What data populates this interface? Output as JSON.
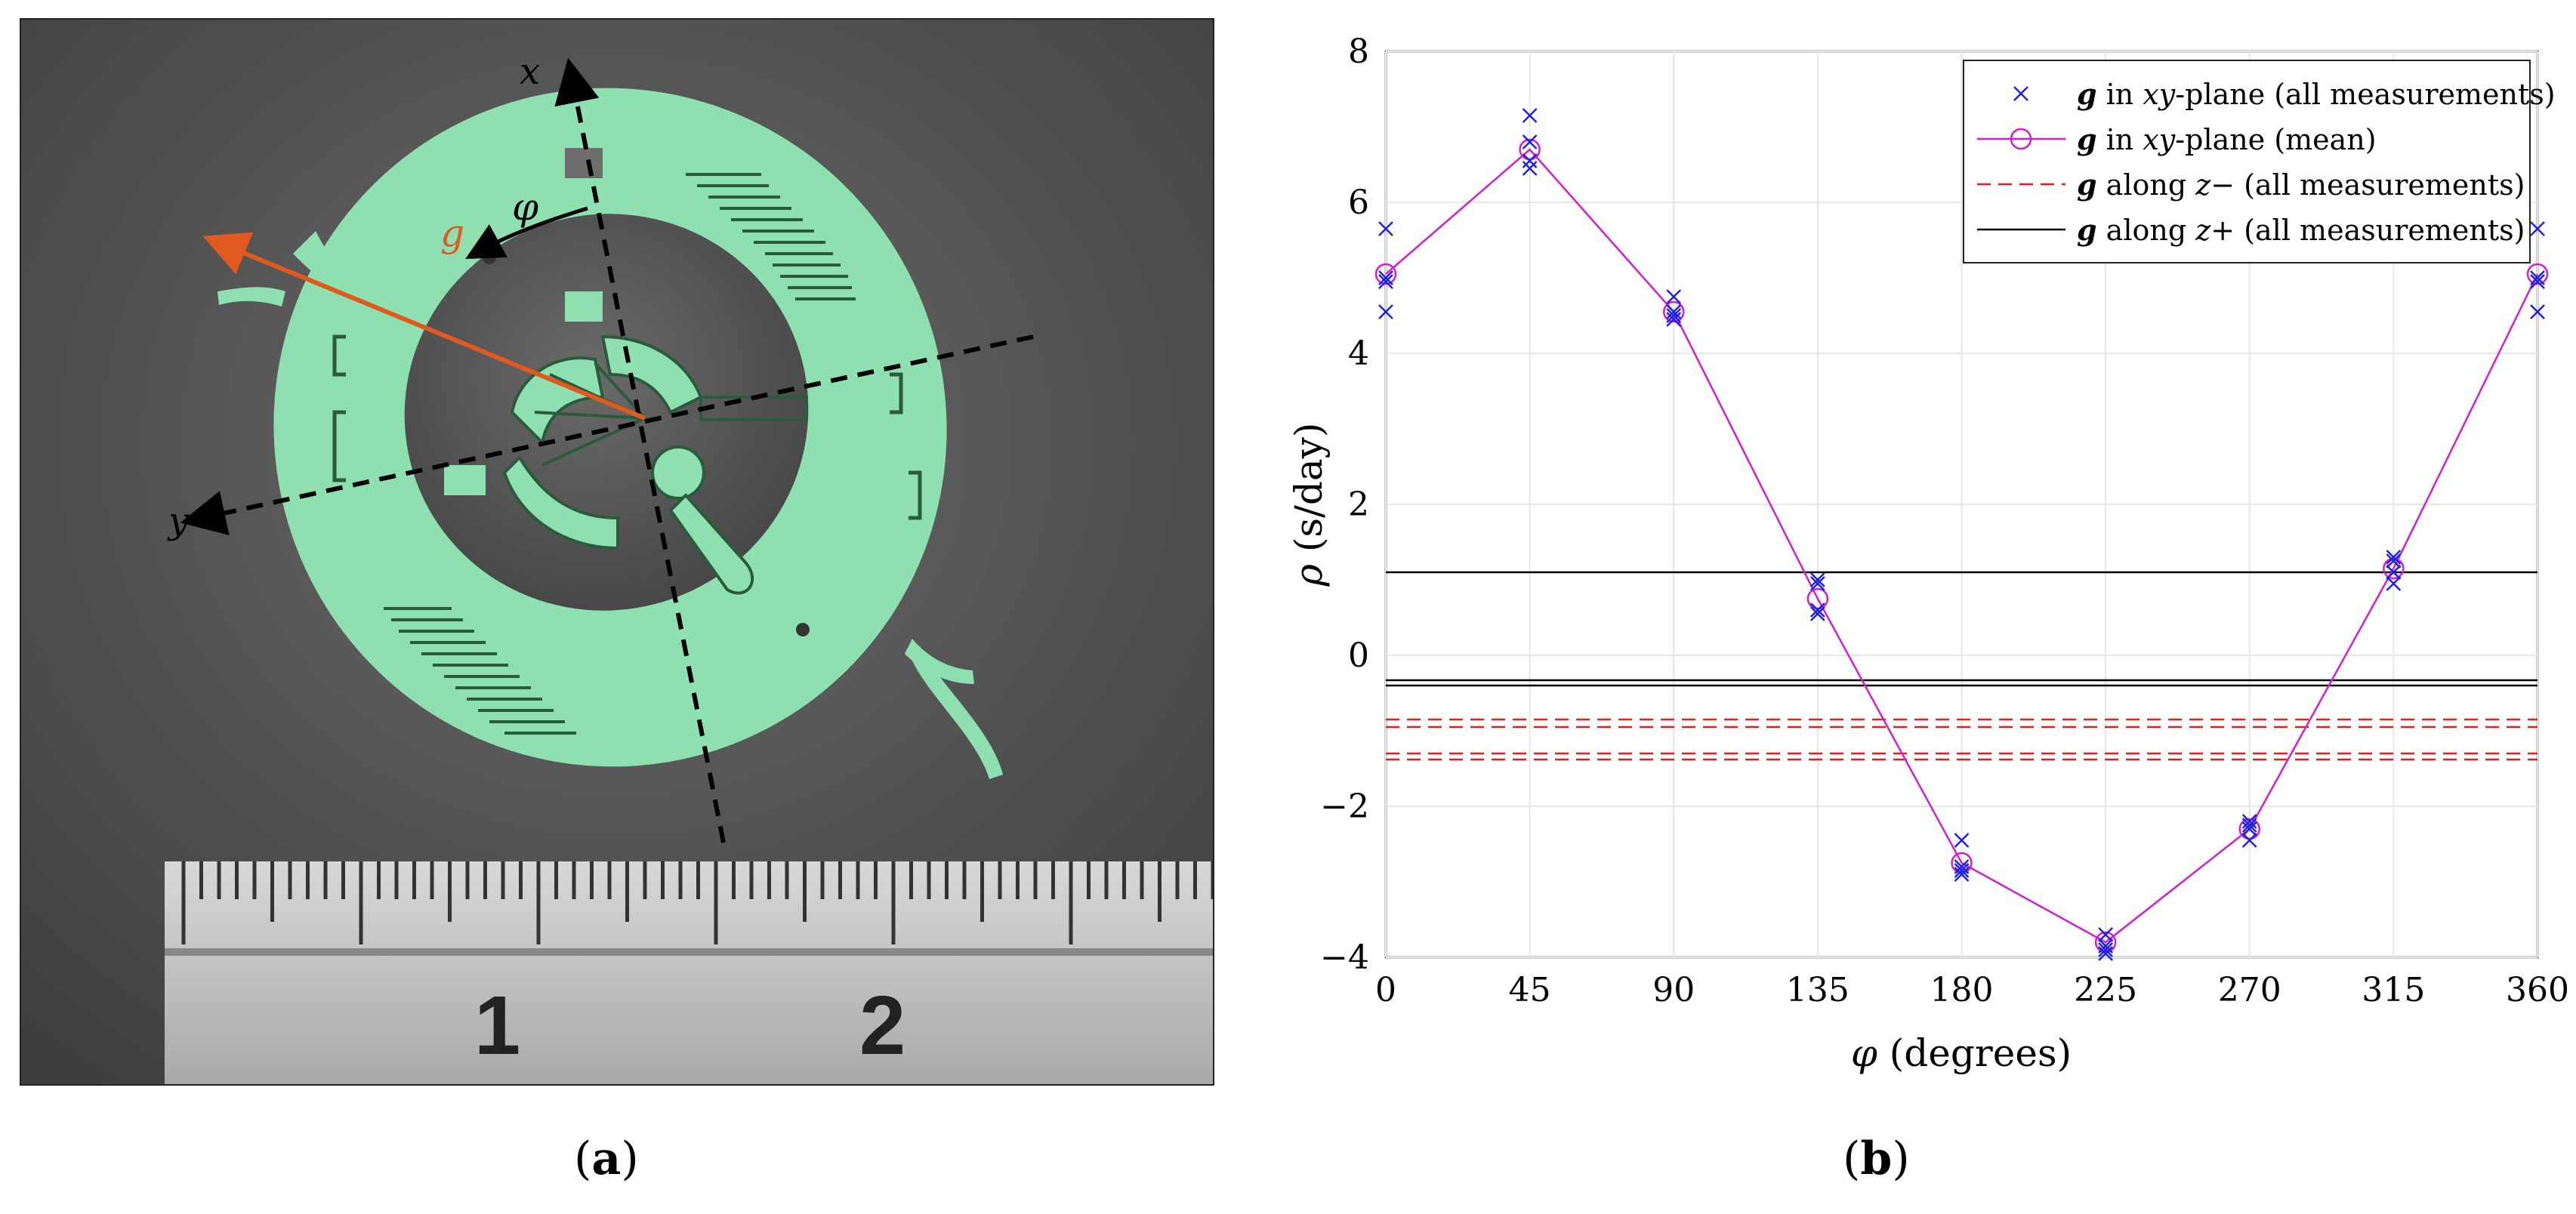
{
  "figure": {
    "panel_a": {
      "label_open": "(",
      "label_letter": "a",
      "label_close": ")",
      "axis_x": "x",
      "axis_y": "y",
      "gravity": "g",
      "angle": "φ",
      "ruler_marks": [
        "1",
        "2"
      ]
    },
    "panel_b": {
      "label_open": "(",
      "label_letter": "b",
      "label_close": ")"
    }
  },
  "chart_data": {
    "type": "scatter",
    "xlabel_symbol": "φ",
    "xlabel_text": " (degrees)",
    "ylabel_symbol": "ρ",
    "ylabel_text": " (s/day)",
    "xlim": [
      0,
      360
    ],
    "ylim": [
      -4,
      8
    ],
    "xticks": [
      0,
      45,
      90,
      135,
      180,
      225,
      270,
      315,
      360
    ],
    "yticks": [
      -4,
      -2,
      0,
      2,
      4,
      6,
      8
    ],
    "grid": true,
    "legend_position": "top-right",
    "legend": [
      {
        "sym": "g",
        "mid": " in ",
        "ital": "xy",
        "rest": "-plane (all measurements)",
        "style": "cross",
        "color": "#2020e0"
      },
      {
        "sym": "g",
        "mid": " in ",
        "ital": "xy",
        "rest": "-plane (mean)",
        "style": "line-circle",
        "color": "#d020d0"
      },
      {
        "sym": "g",
        "mid": " along ",
        "ital": "z",
        "rest": "− (all measurements)",
        "style": "dashed",
        "color": "#e02020"
      },
      {
        "sym": "g",
        "mid": " along ",
        "ital": "z",
        "rest": "+ (all measurements)",
        "style": "solid",
        "color": "#000000"
      }
    ],
    "series": [
      {
        "kind": "measurements",
        "color": "#2020e0",
        "x": [
          0,
          0,
          0,
          0,
          45,
          45,
          45,
          45,
          90,
          90,
          90,
          90,
          135,
          135,
          135,
          135,
          180,
          180,
          180,
          180,
          225,
          225,
          225,
          225,
          270,
          270,
          270,
          270,
          315,
          315,
          315,
          315,
          360,
          360,
          360,
          360
        ],
        "y": [
          5.65,
          4.55,
          4.95,
          5.0,
          7.15,
          6.45,
          6.8,
          6.55,
          4.75,
          4.5,
          4.45,
          4.55,
          1.0,
          0.55,
          0.6,
          0.95,
          -2.45,
          -2.85,
          -2.9,
          -2.8,
          -3.7,
          -3.95,
          -3.85,
          -3.9,
          -2.2,
          -2.45,
          -2.3,
          -2.25,
          1.3,
          0.95,
          1.1,
          1.25,
          5.65,
          4.55,
          4.95,
          5.0
        ]
      },
      {
        "kind": "mean",
        "color": "#d020d0",
        "x": [
          0,
          45,
          90,
          135,
          180,
          225,
          270,
          315,
          360
        ],
        "y": [
          5.05,
          6.7,
          4.55,
          0.75,
          -2.75,
          -3.8,
          -2.3,
          1.15,
          5.05
        ]
      }
    ],
    "hlines_z_minus": [
      -0.85,
      -0.95,
      -1.3,
      -1.38
    ],
    "hlines_z_minus_color": "#e02020",
    "hlines_z_plus": [
      1.1,
      -0.33,
      -0.4
    ],
    "hlines_z_plus_color": "#000000"
  }
}
